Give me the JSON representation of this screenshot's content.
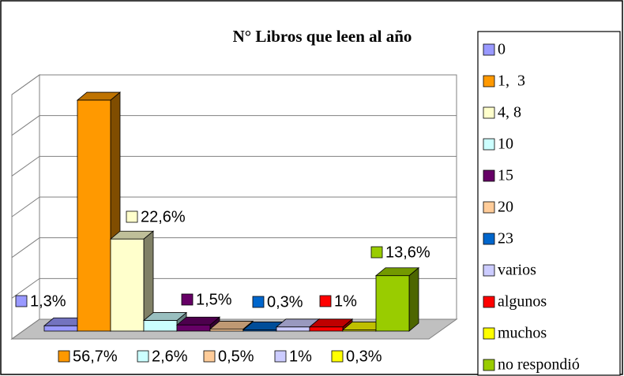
{
  "chart_data": {
    "type": "bar3d",
    "title": "N° Libros que leen al año",
    "categories": [
      "0",
      "1,  3",
      "4, 8",
      "10",
      "15",
      "20",
      "23",
      "varios",
      "algunos",
      "muchos",
      "no respondió"
    ],
    "values": [
      1.3,
      56.7,
      22.6,
      2.6,
      1.5,
      0.5,
      0.3,
      1,
      1,
      0.3,
      13.6
    ],
    "value_labels": [
      "1,3%",
      "56,7%",
      "22,6%",
      "2,6%",
      "1,5%",
      "0,5%",
      "0,3%",
      "1%",
      "1%",
      "0,3%",
      "13,6%"
    ],
    "colors": [
      "#9999ff",
      "#ff9900",
      "#ffffcc",
      "#ccffff",
      "#660066",
      "#ffcc99",
      "#0066cc",
      "#ccccff",
      "#ff0000",
      "#ffff00",
      "#99cc00"
    ],
    "ylim": [
      0,
      60
    ],
    "yticks": [
      0,
      10,
      20,
      30,
      40,
      50,
      60
    ],
    "grid": true,
    "legend": "right"
  }
}
